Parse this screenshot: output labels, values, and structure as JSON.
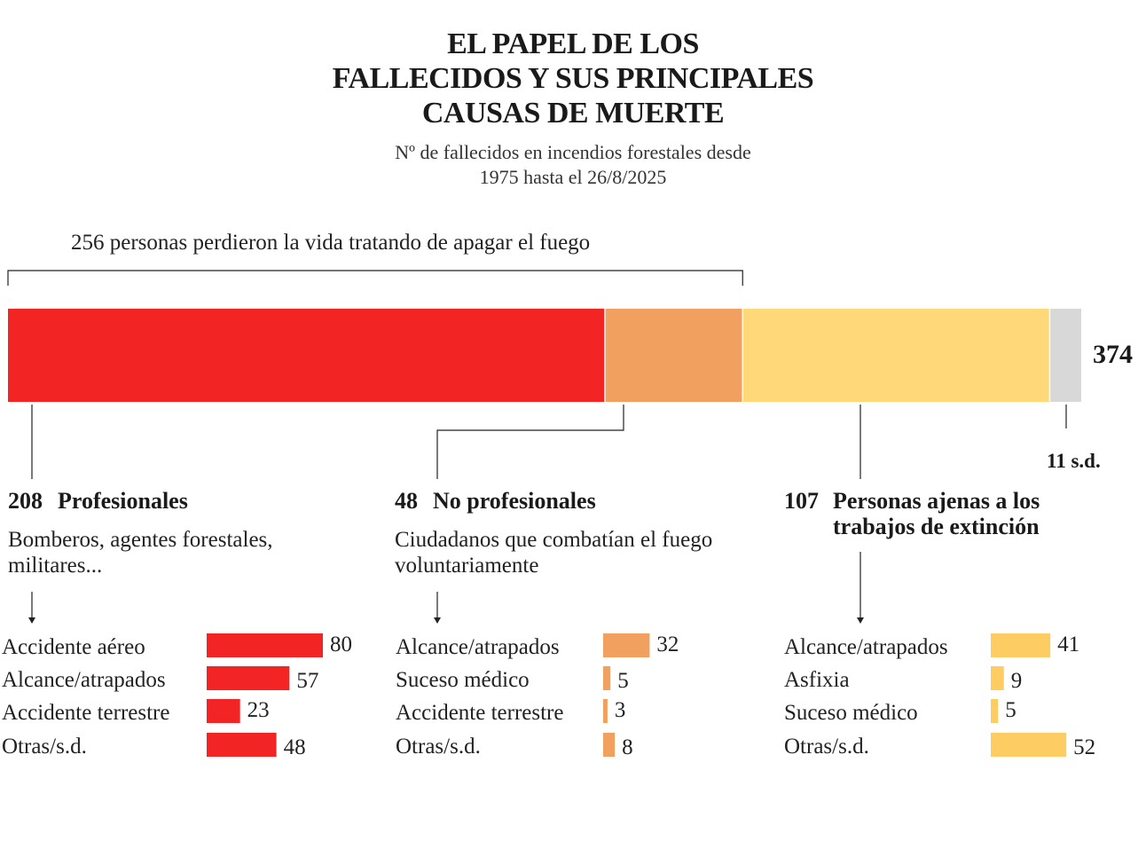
{
  "title_lines": [
    "EL PAPEL DE LOS",
    "FALLECIDOS Y SUS PRINCIPALES",
    "CAUSAS DE MUERTE"
  ],
  "subtitle_lines": [
    "Nº de fallecidos en incendios forestales desde",
    "1975 hasta el 26/8/2025"
  ],
  "bracket_label": "256 personas perdieron la vida tratando de apagar el fuego",
  "total_label": "374",
  "no_data_label": "11  s.d.",
  "groups": [
    {
      "value_label": "208",
      "label": "Profesionales",
      "description": "Bomberos, agentes forestales, militares..."
    },
    {
      "value_label": "48",
      "label": "No profesionales",
      "description": "Ciudadanos que combatían el fuego voluntariamente"
    },
    {
      "value_label": "107",
      "label": "Personas ajenas a los trabajos de extinción",
      "description": ""
    }
  ],
  "colors": {
    "profesionales": "#f22424",
    "no_profesionales": "#f2a060",
    "ajenas": "#ffd87a",
    "sd": "#d8d8d8",
    "small_red": "#f22424",
    "small_orange": "#f2a060",
    "small_yellow": "#fdcc63"
  },
  "chart_data": [
    {
      "type": "bar",
      "orientation": "horizontal-stacked",
      "total": 374,
      "categories": [
        "Profesionales",
        "No profesionales",
        "Personas ajenas a los trabajos de extinción",
        "s.d."
      ],
      "values": [
        208,
        48,
        107,
        11
      ]
    },
    {
      "type": "bar",
      "orientation": "horizontal",
      "group": "Profesionales",
      "categories": [
        "Accidente aéreo",
        "Alcance/atrapados",
        "Accidente terrestre",
        "Otras/s.d."
      ],
      "values": [
        80,
        57,
        23,
        48
      ]
    },
    {
      "type": "bar",
      "orientation": "horizontal",
      "group": "No profesionales",
      "categories": [
        "Alcance/atrapados",
        "Suceso médico",
        "Accidente terrestre",
        "Otras/s.d."
      ],
      "values": [
        32,
        5,
        3,
        8
      ]
    },
    {
      "type": "bar",
      "orientation": "horizontal",
      "group": "Personas ajenas a los trabajos de extinción",
      "categories": [
        "Alcance/atrapados",
        "Asfixia",
        "Suceso médico",
        "Otras/s.d."
      ],
      "values": [
        41,
        9,
        5,
        52
      ]
    }
  ]
}
